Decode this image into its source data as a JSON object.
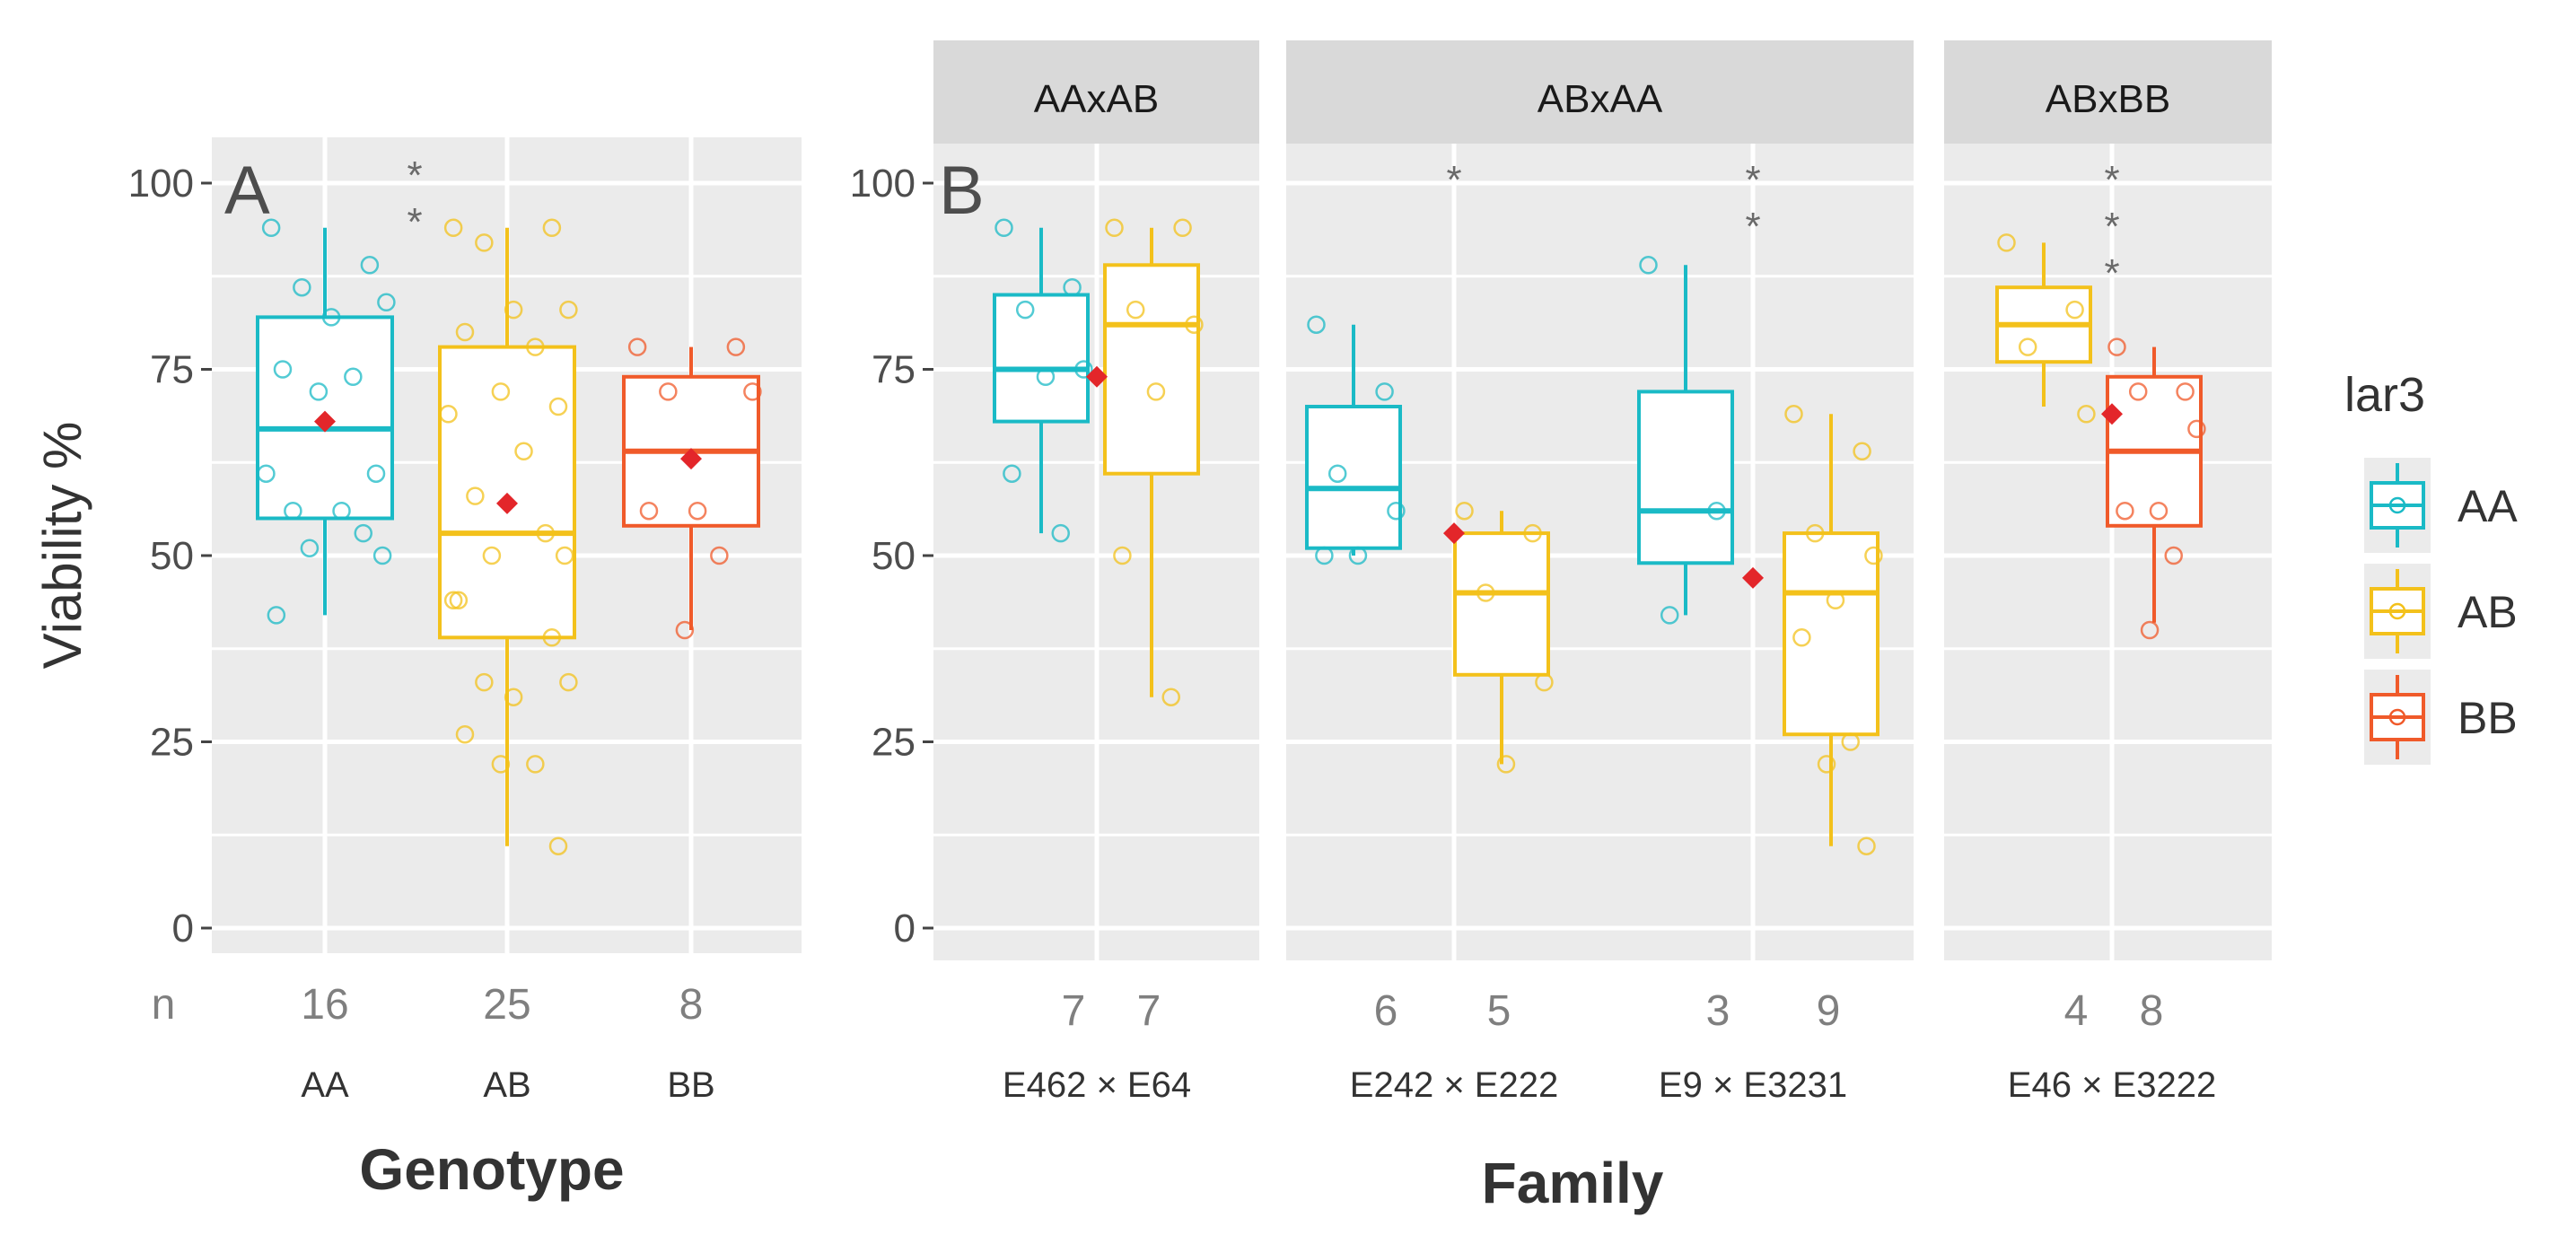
{
  "chart_data": [
    {
      "panel": "A",
      "type": "box",
      "panel_label": "A",
      "xlabel": "Genotype",
      "ylabel": "Viability %",
      "ylim": [
        -3,
        108
      ],
      "yticks": [
        "0",
        "25",
        "50",
        "75",
        "100"
      ],
      "yticks_values": [
        0,
        25,
        50,
        75,
        100
      ],
      "n_prefix": "n",
      "categories": [
        {
          "genotype": "AA",
          "label": "AA",
          "n": "16",
          "color": "#1ABAC6",
          "stats": {
            "q1": 55,
            "median": 67,
            "q3": 82,
            "lower": 42,
            "upper": 94,
            "mean": 68
          },
          "points": [
            94,
            89,
            86,
            84,
            82,
            75,
            74,
            72,
            61,
            61,
            56,
            56,
            53,
            51,
            50,
            42
          ]
        },
        {
          "genotype": "AB",
          "label": "AB",
          "n": "25",
          "color": "#F3C11B",
          "stats": {
            "q1": 39,
            "median": 53,
            "q3": 78,
            "lower": 11,
            "upper": 94,
            "mean": 57
          },
          "points": [
            94,
            94,
            92,
            83,
            83,
            80,
            78,
            72,
            70,
            69,
            64,
            58,
            53,
            50,
            50,
            44,
            44,
            39,
            33,
            33,
            31,
            26,
            22,
            22,
            11
          ]
        },
        {
          "genotype": "BB",
          "label": "BB",
          "n": "8",
          "color": "#F05A2A",
          "stats": {
            "q1": 54,
            "median": 64,
            "q3": 74,
            "lower": 40,
            "upper": 78,
            "mean": 63
          },
          "points": [
            78,
            78,
            72,
            72,
            56,
            56,
            50,
            40
          ]
        }
      ],
      "significance": [
        {
          "between": "AA-AB",
          "text": "**"
        }
      ]
    },
    {
      "panel": "B",
      "type": "box",
      "panel_label": "B",
      "xlabel": "Family",
      "ylim": [
        -3,
        108
      ],
      "yticks": [
        "0",
        "25",
        "50",
        "75",
        "100"
      ],
      "yticks_values": [
        0,
        25,
        50,
        75,
        100
      ],
      "facets": [
        {
          "strip": "AAxAB",
          "families": [
            {
              "cross": "E462 × E64",
              "groups": [
                {
                  "genotype": "AA",
                  "n": "7",
                  "color": "#1ABAC6",
                  "stats": {
                    "q1": 68,
                    "median": 75,
                    "q3": 85,
                    "lower": 53,
                    "upper": 94
                  },
                  "points": [
                    94,
                    86,
                    83,
                    75,
                    74,
                    61,
                    53
                  ]
                },
                {
                  "genotype": "AB",
                  "n": "7",
                  "color": "#F3C11B",
                  "stats": {
                    "q1": 61,
                    "median": 81,
                    "q3": 89,
                    "lower": 31,
                    "upper": 94
                  },
                  "points": [
                    94,
                    94,
                    83,
                    81,
                    72,
                    50,
                    31
                  ]
                }
              ],
              "mean": 74,
              "stars": ""
            }
          ]
        },
        {
          "strip": "ABxAA",
          "families": [
            {
              "cross": "E242 × E222",
              "groups": [
                {
                  "genotype": "AA",
                  "n": "6",
                  "color": "#1ABAC6",
                  "stats": {
                    "q1": 51,
                    "median": 59,
                    "q3": 70,
                    "lower": 50,
                    "upper": 81
                  },
                  "points": [
                    81,
                    72,
                    61,
                    56,
                    50,
                    50
                  ]
                },
                {
                  "genotype": "AB",
                  "n": "5",
                  "color": "#F3C11B",
                  "stats": {
                    "q1": 34,
                    "median": 45,
                    "q3": 53,
                    "lower": 22,
                    "upper": 56
                  },
                  "points": [
                    56,
                    53,
                    45,
                    33,
                    22
                  ]
                }
              ],
              "mean": 53,
              "stars": "*"
            },
            {
              "cross": "E9 × E3231",
              "groups": [
                {
                  "genotype": "AA",
                  "n": "3",
                  "color": "#1ABAC6",
                  "stats": {
                    "q1": 49,
                    "median": 56,
                    "q3": 72,
                    "lower": 42,
                    "upper": 89
                  },
                  "points": [
                    89,
                    56,
                    42
                  ]
                },
                {
                  "genotype": "AB",
                  "n": "9",
                  "color": "#F3C11B",
                  "stats": {
                    "q1": 26,
                    "median": 45,
                    "q3": 53,
                    "lower": 11,
                    "upper": 69
                  },
                  "points": [
                    69,
                    64,
                    53,
                    50,
                    44,
                    39,
                    25,
                    22,
                    11
                  ]
                }
              ],
              "mean": 47,
              "stars": "**"
            }
          ]
        },
        {
          "strip": "ABxBB",
          "families": [
            {
              "cross": "E46 × E3222",
              "groups": [
                {
                  "genotype": "AB",
                  "n": "4",
                  "color": "#F3C11B",
                  "stats": {
                    "q1": 76,
                    "median": 81,
                    "q3": 86,
                    "lower": 70,
                    "upper": 92
                  },
                  "points": [
                    92,
                    83,
                    78,
                    69
                  ]
                },
                {
                  "genotype": "BB",
                  "n": "8",
                  "color": "#F05A2A",
                  "stats": {
                    "q1": 54,
                    "median": 64,
                    "q3": 74,
                    "lower": 41,
                    "upper": 78
                  },
                  "points": [
                    78,
                    72,
                    72,
                    67,
                    56,
                    56,
                    50,
                    40
                  ]
                }
              ],
              "mean": 69,
              "stars": "***"
            }
          ]
        }
      ]
    }
  ],
  "legend": {
    "title": "lar3",
    "position": "right",
    "items": [
      {
        "label": "AA",
        "color": "#1ABAC6"
      },
      {
        "label": "AB",
        "color": "#F3C11B"
      },
      {
        "label": "BB",
        "color": "#F05A2A"
      }
    ]
  },
  "mean_marker_color": "#E3262A",
  "panel_bg": "#EBEBEB",
  "strip_bg": "#D9D9D9",
  "star_color": "#6a6a6a"
}
